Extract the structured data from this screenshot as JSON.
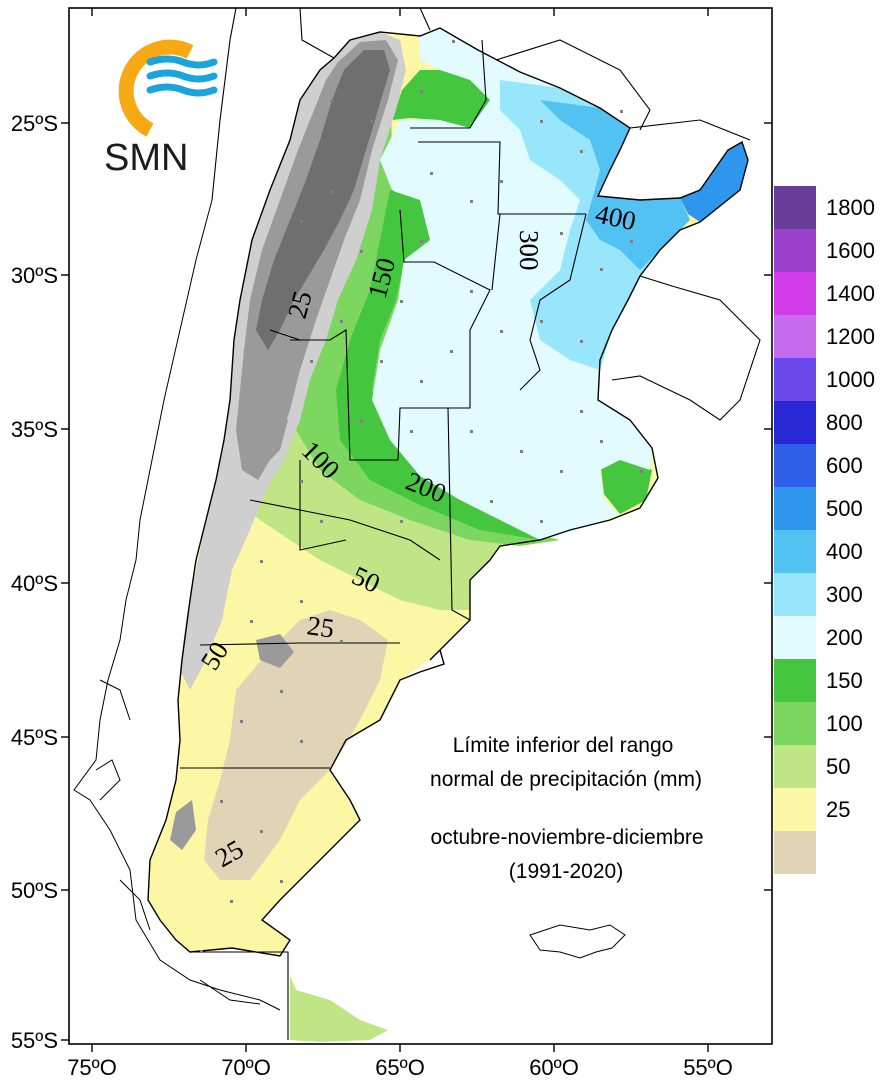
{
  "logo": {
    "text": "SMN",
    "colors": {
      "ring": "#f6a913",
      "waves": "#1aa3dc"
    }
  },
  "caption": {
    "line1": "Límite inferior del rango",
    "line2": "normal de precipitación (mm)",
    "line3": "octubre-noviembre-diciembre",
    "line4": "(1991-2020)"
  },
  "axes": {
    "lat_labels": [
      "25ºS",
      "30ºS",
      "35ºS",
      "40ºS",
      "45ºS",
      "50ºS",
      "55ºS"
    ],
    "lon_labels": [
      "75ºO",
      "70ºO",
      "65ºO",
      "60ºO",
      "55ºO"
    ]
  },
  "legend": {
    "labels": [
      "1800",
      "1600",
      "1400",
      "1200",
      "1000",
      "800",
      "600",
      "500",
      "400",
      "300",
      "200",
      "150",
      "100",
      "50",
      "25"
    ],
    "colors": [
      "#6a3d9a",
      "#9a40cc",
      "#d23be8",
      "#c56bee",
      "#6a47e8",
      "#2727d6",
      "#2f5fe8",
      "#2f96ee",
      "#52c2f3",
      "#98e6fb",
      "#e2fbff",
      "#45c63f",
      "#7cd65f",
      "#bfe585",
      "#fbf7a4",
      "#e1d3b6"
    ]
  },
  "contour_labels": [
    "400",
    "300",
    "150",
    "25",
    "100",
    "200",
    "50",
    "25",
    "50",
    "25"
  ],
  "map_colors": {
    "ocean": "#ffffff",
    "lt25": "#e1d3b6",
    "r25_50": "#fbf7a4",
    "r50_100": "#bfe585",
    "r100_150": "#7cd65f",
    "r150_200": "#45c63f",
    "r200_300": "#e2fbff",
    "r300_400": "#98e6fb",
    "r400_500": "#52c2f3",
    "r500_600": "#2f96ee",
    "andes_dark": "#6f6f6f",
    "andes_mid": "#9a9a9a",
    "andes_light": "#cfcfcf"
  }
}
